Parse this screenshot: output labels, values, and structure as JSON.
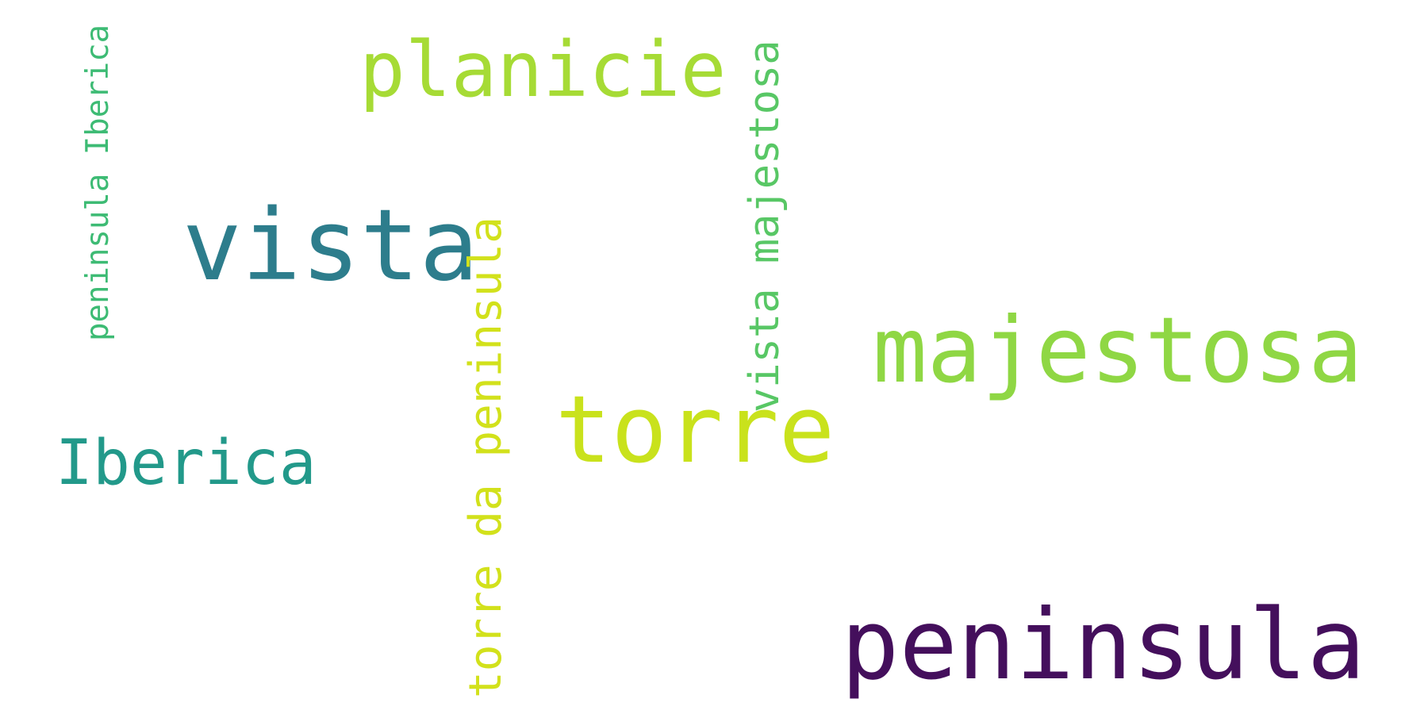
{
  "words": [
    {
      "text": "peninsula",
      "color": "#440f5c"
    },
    {
      "text": "majestosa",
      "color": "#8fd744"
    },
    {
      "text": "vista",
      "color": "#2d7d8c"
    },
    {
      "text": "torre",
      "color": "#c9e21c"
    },
    {
      "text": "planicie",
      "color": "#a6db35"
    },
    {
      "text": "Iberica",
      "color": "#22998a"
    },
    {
      "text": "torre da peninsula",
      "color": "#d2e11b",
      "orientation": "vertical"
    },
    {
      "text": "vista majestosa",
      "color": "#58c765",
      "orientation": "vertical"
    },
    {
      "text": "peninsula Iberica",
      "color": "#3dbb74",
      "orientation": "vertical"
    }
  ]
}
